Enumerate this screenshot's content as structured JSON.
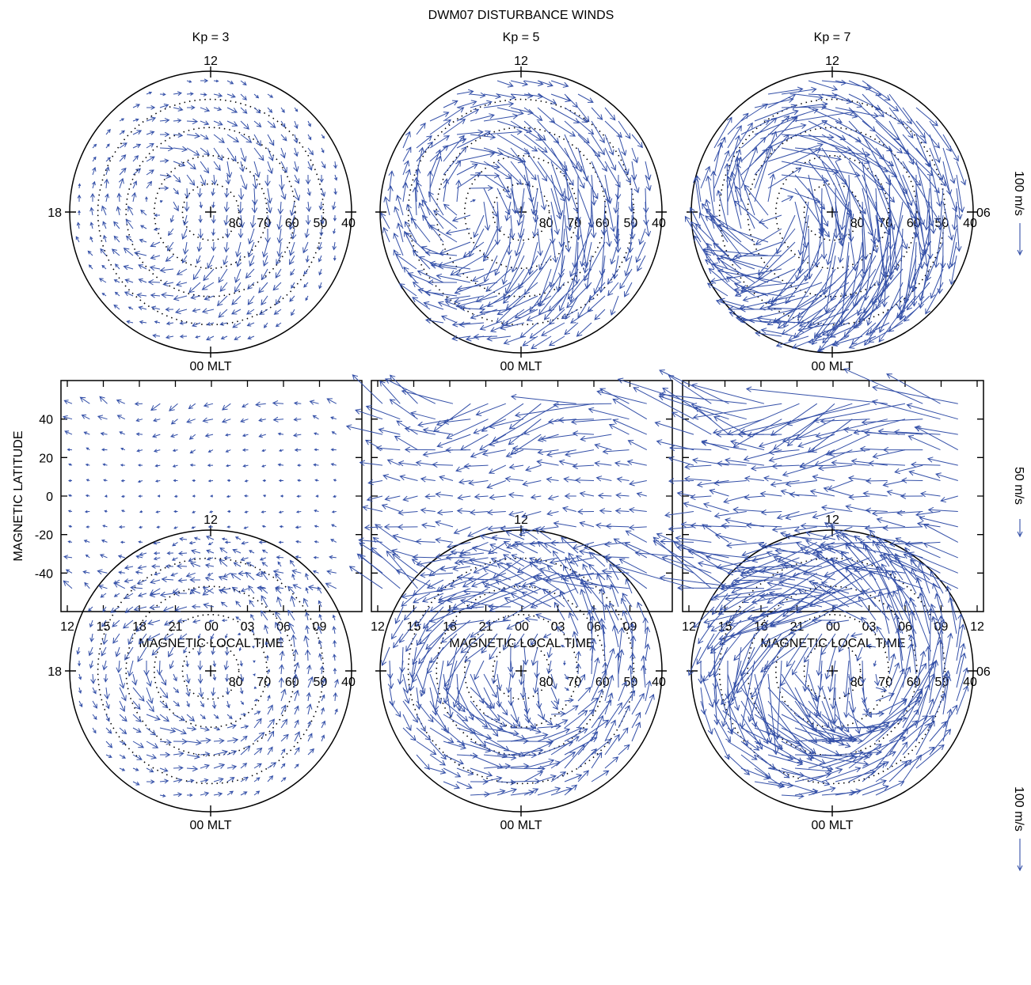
{
  "title": "DWM07 DISTURBANCE WINDS",
  "colors": {
    "vector": "#3450a8",
    "axis": "#000000"
  },
  "column_titles": [
    "Kp = 3",
    "Kp = 5",
    "Kp = 7"
  ],
  "polar_labels": {
    "top": "12",
    "bottom": "00 MLT",
    "left": "18",
    "right": "06",
    "rings": [
      "80",
      "70",
      "60",
      "50",
      "40"
    ]
  },
  "vector_scales": {
    "polar": "100 m/s",
    "rect": "50 m/s"
  },
  "chart_data": [
    {
      "type": "vector-field-polar",
      "hemisphere": "north",
      "kp": 3,
      "coordinates": "magnetic latitude / magnetic local time",
      "lat_range": [
        40,
        90
      ],
      "ring_latitudes": [
        80,
        70,
        60,
        50,
        40
      ],
      "scale_label": "100 m/s",
      "max_speed_ms": 45
    },
    {
      "type": "vector-field-polar",
      "hemisphere": "north",
      "kp": 5,
      "lat_range": [
        40,
        90
      ],
      "ring_latitudes": [
        80,
        70,
        60,
        50,
        40
      ],
      "scale_label": "100 m/s",
      "max_speed_ms": 140
    },
    {
      "type": "vector-field-polar",
      "hemisphere": "north",
      "kp": 7,
      "lat_range": [
        40,
        90
      ],
      "ring_latitudes": [
        80,
        70,
        60,
        50,
        40
      ],
      "scale_label": "100 m/s",
      "max_speed_ms": 240
    },
    {
      "type": "vector-field",
      "kp": 3,
      "xlabel": "MAGNETIC LOCAL TIME",
      "ylabel": "MAGNETIC LATITUDE",
      "x_ticks": [
        "12",
        "15",
        "18",
        "21",
        "00",
        "03",
        "06",
        "09"
      ],
      "y_ticks": [
        "40",
        "20",
        "0",
        "-20",
        "-40"
      ],
      "ylim": [
        -60,
        60
      ],
      "scale_label": "50 m/s",
      "max_speed_ms": 35
    },
    {
      "type": "vector-field",
      "kp": 5,
      "xlabel": "MAGNETIC LOCAL TIME",
      "x_ticks": [
        "12",
        "15",
        "18",
        "21",
        "00",
        "03",
        "06",
        "09"
      ],
      "ylim": [
        -60,
        60
      ],
      "scale_label": "50 m/s",
      "max_speed_ms": 160
    },
    {
      "type": "vector-field",
      "kp": 7,
      "xlabel": "MAGNETIC LOCAL TIME",
      "x_ticks": [
        "12",
        "15",
        "18",
        "21",
        "00",
        "03",
        "06",
        "09",
        "12"
      ],
      "ylim": [
        -60,
        60
      ],
      "scale_label": "50 m/s",
      "max_speed_ms": 260
    },
    {
      "type": "vector-field-polar",
      "hemisphere": "south",
      "kp": 3,
      "lat_range": [
        40,
        90
      ],
      "ring_latitudes": [
        80,
        70,
        60,
        50,
        40
      ],
      "scale_label": "100 m/s",
      "max_speed_ms": 50
    },
    {
      "type": "vector-field-polar",
      "hemisphere": "south",
      "kp": 5,
      "lat_range": [
        40,
        90
      ],
      "ring_latitudes": [
        80,
        70,
        60,
        50,
        40
      ],
      "scale_label": "100 m/s",
      "max_speed_ms": 140
    },
    {
      "type": "vector-field-polar",
      "hemisphere": "south",
      "kp": 7,
      "lat_range": [
        40,
        90
      ],
      "ring_latitudes": [
        80,
        70,
        60,
        50,
        40
      ],
      "scale_label": "100 m/s",
      "max_speed_ms": 230
    }
  ]
}
